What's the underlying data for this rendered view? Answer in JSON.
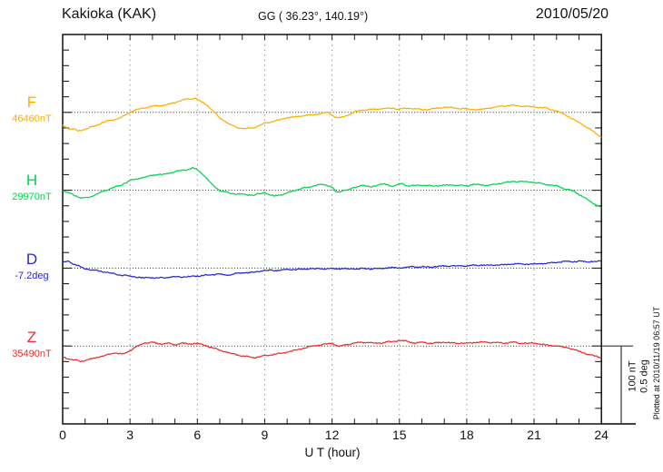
{
  "header": {
    "station": "Kakioka (KAK)",
    "coordinates": "GG ( 36.23°, 140.19°)",
    "date": "2010/05/20"
  },
  "x_axis": {
    "label": "U T (hour)"
  },
  "scale_bar": {
    "nt": "100 nT",
    "deg": "0.5 deg"
  },
  "plotted_at": "Plotted at 2010/11/19 06:57 UT",
  "chart_data": {
    "type": "line",
    "title": "Kakioka (KAK) magnetogram 2010/05/20",
    "xlabel": "U T (hour)",
    "x_range": [
      0,
      24
    ],
    "x_ticks": [
      0,
      3,
      6,
      9,
      12,
      15,
      18,
      21,
      24
    ],
    "x_grid_every_hours": 3,
    "y_division_nT": 20,
    "y_division_deg": 0.1,
    "scale_reference": {
      "nT": 100,
      "deg": 0.5
    },
    "legend_position": "left margin, one label per stacked trace",
    "grid": "vertical dotted gridlines every 3 h; dotted horizontal reference line per trace",
    "series": [
      {
        "name": "F",
        "reference_value": "46460nT",
        "unit": "nT offset from reference line",
        "color": "#FFAD00",
        "points": [
          [
            0,
            -16.5
          ],
          [
            0.3,
            -21
          ],
          [
            0.7,
            -23.5
          ],
          [
            1,
            -22
          ],
          [
            1.5,
            -16.5
          ],
          [
            2,
            -10.7
          ],
          [
            2.5,
            -8.4
          ],
          [
            3,
            0
          ],
          [
            3.5,
            5.6
          ],
          [
            4,
            8
          ],
          [
            4.5,
            9
          ],
          [
            5,
            12.6
          ],
          [
            5.5,
            17
          ],
          [
            5.9,
            18
          ],
          [
            6.1,
            15
          ],
          [
            6.4,
            10
          ],
          [
            6.7,
            2
          ],
          [
            7,
            -7
          ],
          [
            7.5,
            -16.5
          ],
          [
            8,
            -21
          ],
          [
            8.5,
            -20
          ],
          [
            9,
            -14
          ],
          [
            9.5,
            -10.7
          ],
          [
            10,
            -7
          ],
          [
            10.5,
            -4.9
          ],
          [
            11,
            -3.7
          ],
          [
            11.5,
            -1.4
          ],
          [
            11.8,
            0
          ],
          [
            12.1,
            -5
          ],
          [
            12.3,
            -7
          ],
          [
            12.6,
            -4.9
          ],
          [
            13,
            0.9
          ],
          [
            13.5,
            3.3
          ],
          [
            14,
            4.4
          ],
          [
            14.5,
            5.6
          ],
          [
            15,
            4.4
          ],
          [
            15.5,
            5.6
          ],
          [
            16,
            3.3
          ],
          [
            16.5,
            4.4
          ],
          [
            17,
            6.8
          ],
          [
            17.5,
            5.6
          ],
          [
            18,
            4.4
          ],
          [
            18.5,
            3.3
          ],
          [
            19,
            5.6
          ],
          [
            19.5,
            8
          ],
          [
            20,
            9
          ],
          [
            20.5,
            8
          ],
          [
            21,
            6.8
          ],
          [
            21.5,
            5.6
          ],
          [
            22,
            2
          ],
          [
            22.5,
            -4.9
          ],
          [
            23,
            -13
          ],
          [
            23.5,
            -22
          ],
          [
            24,
            -31.7
          ]
        ]
      },
      {
        "name": "H",
        "reference_value": "29970nT",
        "unit": "nT offset from reference line",
        "color": "#00D44C",
        "points": [
          [
            0,
            0
          ],
          [
            0.5,
            -6.3
          ],
          [
            0.8,
            -9.8
          ],
          [
            1.2,
            -8.6
          ],
          [
            1.8,
            -1.6
          ],
          [
            2.2,
            3
          ],
          [
            2.6,
            6.5
          ],
          [
            3,
            12.4
          ],
          [
            3.5,
            15.9
          ],
          [
            4,
            19.3
          ],
          [
            4.5,
            20.5
          ],
          [
            5,
            24
          ],
          [
            5.5,
            26.3
          ],
          [
            5.8,
            28.7
          ],
          [
            6,
            26.3
          ],
          [
            6.3,
            19.3
          ],
          [
            6.6,
            8.9
          ],
          [
            7,
            -0.5
          ],
          [
            7.5,
            -4
          ],
          [
            8,
            -5.1
          ],
          [
            8.5,
            -6.3
          ],
          [
            9,
            -2.8
          ],
          [
            9.4,
            -7.5
          ],
          [
            9.8,
            -5.1
          ],
          [
            10.3,
            -0.5
          ],
          [
            10.8,
            3
          ],
          [
            11.3,
            6.5
          ],
          [
            11.6,
            7.7
          ],
          [
            12,
            4.2
          ],
          [
            12.2,
            -2.8
          ],
          [
            12.5,
            -0.5
          ],
          [
            13,
            3
          ],
          [
            13.3,
            6.5
          ],
          [
            13.7,
            4.2
          ],
          [
            14,
            6.5
          ],
          [
            14.3,
            7.7
          ],
          [
            14.7,
            5.4
          ],
          [
            15.1,
            8.9
          ],
          [
            15.4,
            5.4
          ],
          [
            16,
            6.5
          ],
          [
            16.5,
            5.4
          ],
          [
            17,
            6.5
          ],
          [
            17.5,
            6.5
          ],
          [
            18,
            5.4
          ],
          [
            18.3,
            7.7
          ],
          [
            18.7,
            6.5
          ],
          [
            19,
            6.5
          ],
          [
            19.5,
            8.9
          ],
          [
            20,
            11.2
          ],
          [
            20.5,
            11.2
          ],
          [
            21,
            10
          ],
          [
            21.5,
            7.7
          ],
          [
            22,
            5.4
          ],
          [
            22.4,
            1.9
          ],
          [
            22.8,
            -1.6
          ],
          [
            23.2,
            -8.6
          ],
          [
            23.6,
            -15.6
          ],
          [
            24,
            -22.6
          ]
        ]
      },
      {
        "name": "D",
        "reference_value": "-7.2deg",
        "unit": "deg offset from reference line",
        "color": "#2828CC",
        "points": [
          [
            0,
            0.037
          ],
          [
            0.25,
            0.043
          ],
          [
            0.6,
            0.02
          ],
          [
            1,
            -0.004
          ],
          [
            1.5,
            -0.015
          ],
          [
            2,
            -0.027
          ],
          [
            2.5,
            -0.044
          ],
          [
            3,
            -0.05
          ],
          [
            3.5,
            -0.062
          ],
          [
            4,
            -0.062
          ],
          [
            4.5,
            -0.062
          ],
          [
            5,
            -0.056
          ],
          [
            5.5,
            -0.056
          ],
          [
            6,
            -0.05
          ],
          [
            6.5,
            -0.044
          ],
          [
            7,
            -0.038
          ],
          [
            7.4,
            -0.044
          ],
          [
            7.8,
            -0.033
          ],
          [
            8.5,
            -0.027
          ],
          [
            9,
            -0.015
          ],
          [
            9.5,
            -0.015
          ],
          [
            10,
            -0.009
          ],
          [
            10.5,
            -0.009
          ],
          [
            11,
            -0.004
          ],
          [
            12,
            -0.004
          ],
          [
            13,
            -0.004
          ],
          [
            14,
            -0.004
          ],
          [
            14.5,
            0.002
          ],
          [
            15,
            0.002
          ],
          [
            15.5,
            0.008
          ],
          [
            16,
            0.008
          ],
          [
            16.5,
            0.008
          ],
          [
            17,
            0.014
          ],
          [
            17.5,
            0.014
          ],
          [
            18,
            0.014
          ],
          [
            18.5,
            0.02
          ],
          [
            19,
            0.02
          ],
          [
            19.5,
            0.02
          ],
          [
            20,
            0.026
          ],
          [
            20.5,
            0.026
          ],
          [
            21,
            0.026
          ],
          [
            21.5,
            0.031
          ],
          [
            22,
            0.037
          ],
          [
            22.5,
            0.043
          ],
          [
            23,
            0.043
          ],
          [
            23.5,
            0.043
          ],
          [
            24,
            0.043
          ]
        ]
      },
      {
        "name": "Z",
        "reference_value": "35490nT",
        "unit": "nT offset from reference line",
        "color": "#EE2C2C",
        "points": [
          [
            0,
            -13.8
          ],
          [
            0.4,
            -17.2
          ],
          [
            0.8,
            -19.6
          ],
          [
            1.2,
            -17.2
          ],
          [
            1.6,
            -13.8
          ],
          [
            2,
            -11.4
          ],
          [
            2.3,
            -9.1
          ],
          [
            2.7,
            -10.3
          ],
          [
            3,
            -5.6
          ],
          [
            3.3,
            -0.9
          ],
          [
            3.6,
            3.7
          ],
          [
            4,
            4.9
          ],
          [
            4.3,
            2.6
          ],
          [
            4.7,
            3.7
          ],
          [
            5,
            1.4
          ],
          [
            5.3,
            3.7
          ],
          [
            5.7,
            2.6
          ],
          [
            6,
            3.7
          ],
          [
            6.4,
            0.2
          ],
          [
            6.8,
            -3.3
          ],
          [
            7.2,
            -6.8
          ],
          [
            7.6,
            -10.3
          ],
          [
            8,
            -12.6
          ],
          [
            8.5,
            -14.9
          ],
          [
            9,
            -12.6
          ],
          [
            9.5,
            -10.3
          ],
          [
            10,
            -7.9
          ],
          [
            10.5,
            -4.4
          ],
          [
            11,
            -0.9
          ],
          [
            11.5,
            1.4
          ],
          [
            12,
            3.7
          ],
          [
            12.3,
            -0.9
          ],
          [
            12.6,
            1.4
          ],
          [
            13,
            3.7
          ],
          [
            13.5,
            4.9
          ],
          [
            14,
            3.7
          ],
          [
            14.5,
            4.9
          ],
          [
            15,
            7.2
          ],
          [
            15.3,
            6.1
          ],
          [
            15.7,
            3.7
          ],
          [
            16,
            4.9
          ],
          [
            16.5,
            3.7
          ],
          [
            17,
            4.9
          ],
          [
            17.5,
            3.7
          ],
          [
            18,
            3.7
          ],
          [
            18.5,
            4.9
          ],
          [
            19,
            4.9
          ],
          [
            19.5,
            3.7
          ],
          [
            20,
            4.9
          ],
          [
            20.5,
            3.7
          ],
          [
            21,
            3.7
          ],
          [
            21.5,
            1.4
          ],
          [
            22,
            0.2
          ],
          [
            22.5,
            -2.1
          ],
          [
            23,
            -6.8
          ],
          [
            23.5,
            -11.4
          ],
          [
            24,
            -14.9
          ]
        ]
      }
    ]
  }
}
